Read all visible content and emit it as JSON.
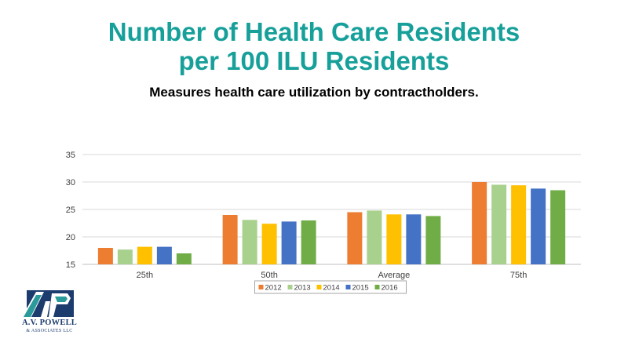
{
  "title_line1": "Number of Health Care Residents",
  "title_line2": "per 100 ILU Residents",
  "subtitle": "Measures health care utilization by contractholders.",
  "logo": {
    "line1": "A.V. POWELL",
    "line2": "& ASSOCIATES LLC",
    "mark_letters": "AVP"
  },
  "chart_data": {
    "type": "bar",
    "categories": [
      "25th",
      "50th",
      "Average",
      "75th"
    ],
    "series": [
      {
        "name": "2012",
        "color": "#ED7D31",
        "values": [
          18.0,
          24.0,
          24.5,
          30.0
        ]
      },
      {
        "name": "2013",
        "color": "#A9D18E",
        "values": [
          17.7,
          23.1,
          24.8,
          29.5
        ]
      },
      {
        "name": "2014",
        "color": "#FFC000",
        "values": [
          18.2,
          22.4,
          24.1,
          29.4
        ]
      },
      {
        "name": "2015",
        "color": "#4472C4",
        "values": [
          18.2,
          22.8,
          24.1,
          28.8
        ]
      },
      {
        "name": "2016",
        "color": "#70AD47",
        "values": [
          17.0,
          23.0,
          23.8,
          28.5
        ]
      }
    ],
    "ylim": [
      15,
      35
    ],
    "yticks": [
      15,
      20,
      25,
      30,
      35
    ],
    "grid": true,
    "legend_position": "bottom"
  }
}
